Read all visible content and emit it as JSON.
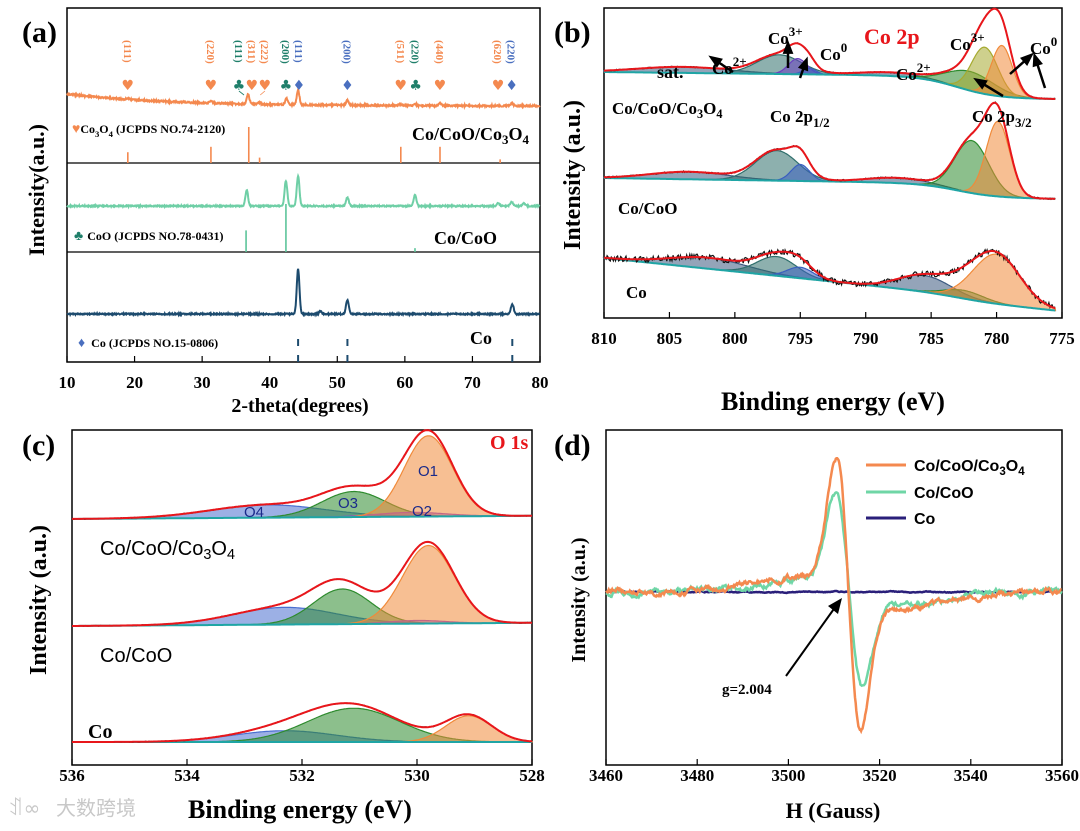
{
  "watermark": "大数跨境",
  "chart_data": [
    {
      "panel": "(a)",
      "type": "line",
      "xlabel": "2-theta(degrees)",
      "ylabel": "Intensity(a.u.)",
      "xlim": [
        10,
        80
      ],
      "xticks": [
        10,
        20,
        30,
        40,
        50,
        60,
        70,
        80
      ],
      "series": [
        {
          "name": "Co/CoO/Co3O4",
          "color": "#f4894f",
          "peaks": [
            [
              19.0,
              0.02
            ],
            [
              31.3,
              0.04
            ],
            [
              36.8,
              0.18
            ],
            [
              38.5,
              0.03
            ],
            [
              42.5,
              0.12
            ],
            [
              44.2,
              0.28
            ],
            [
              51.5,
              0.09
            ],
            [
              59.3,
              0.03
            ],
            [
              61.5,
              0.03
            ],
            [
              65.2,
              0.05
            ],
            [
              75.8,
              0.05
            ]
          ]
        },
        {
          "name": "Co/CoO",
          "color": "#6fcfa6",
          "peaks": [
            [
              36.6,
              0.38
            ],
            [
              42.4,
              0.6
            ],
            [
              44.2,
              0.72
            ],
            [
              51.5,
              0.2
            ],
            [
              61.5,
              0.26
            ],
            [
              73.8,
              0.06
            ],
            [
              75.8,
              0.1
            ],
            [
              77.6,
              0.07
            ]
          ]
        },
        {
          "name": "Co",
          "color": "#1d4b6e",
          "peaks": [
            [
              44.2,
              1.0
            ],
            [
              47.5,
              0.06
            ],
            [
              51.5,
              0.32
            ],
            [
              75.9,
              0.22
            ]
          ]
        }
      ],
      "references": [
        {
          "label": "Co3O4 (JCPDS NO.74-2120)",
          "symbol": "♥",
          "color": "#f4894f",
          "sticks": [
            [
              19.0,
              0.3
            ],
            [
              31.3,
              0.45
            ],
            [
              36.9,
              1.0
            ],
            [
              38.5,
              0.15
            ],
            [
              59.4,
              0.45
            ],
            [
              65.2,
              0.45
            ],
            [
              74.1,
              0.1
            ]
          ]
        },
        {
          "label": "CoO (JCPDS NO.78-0431)",
          "symbol": "♣",
          "color": "#5cc49a",
          "sticks": [
            [
              36.5,
              0.45
            ],
            [
              42.4,
              1.0
            ],
            [
              61.5,
              0.08
            ]
          ]
        },
        {
          "label": "Co (JCPDS NO.15-0806)",
          "symbol": "♦",
          "color": "#1d4b6e",
          "symbol_color": "#4a6fbf",
          "sticks": [
            [
              44.2,
              1.0
            ],
            [
              51.5,
              1.0
            ],
            [
              75.9,
              1.0
            ]
          ]
        }
      ],
      "peak_labels": [
        {
          "hkl": "(111)",
          "x": 19.0,
          "symbol": "♥",
          "color": "#f4894f"
        },
        {
          "hkl": "(220)",
          "x": 31.3,
          "symbol": "♥",
          "color": "#f4894f"
        },
        {
          "hkl": "(111)",
          "x": 36.2,
          "symbol": "♣",
          "color": "#1f7f6a"
        },
        {
          "hkl": "(311)",
          "x": 37.3,
          "symbol": "♥",
          "color": "#f4894f"
        },
        {
          "hkl": "(222)",
          "x": 38.6,
          "symbol": "♥",
          "color": "#f4894f"
        },
        {
          "hkl": "(200)",
          "x": 42.5,
          "symbol": "♣",
          "color": "#1f7f6a"
        },
        {
          "hkl": "(111)",
          "x": 44.2,
          "symbol": "♦",
          "color": "#4a6fbf"
        },
        {
          "hkl": "(200)",
          "x": 51.5,
          "symbol": "♦",
          "color": "#4a6fbf"
        },
        {
          "hkl": "(511)",
          "x": 59.4,
          "symbol": "♥",
          "color": "#f4894f"
        },
        {
          "hkl": "(220)",
          "x": 61.6,
          "symbol": "♣",
          "color": "#1f7f6a"
        },
        {
          "hkl": "(440)",
          "x": 65.2,
          "symbol": "♥",
          "color": "#f4894f"
        },
        {
          "hkl": "(620)",
          "x": 73.8,
          "symbol": "♥",
          "color": "#f4894f"
        },
        {
          "hkl": "(220)",
          "x": 75.8,
          "symbol": "♦",
          "color": "#4a6fbf"
        }
      ]
    },
    {
      "panel": "(b)",
      "type": "line",
      "title": "Co 2p",
      "xlabel": "Binding energy (eV)",
      "ylabel": "Intensity (a.u.)",
      "xlim": [
        810,
        775
      ],
      "xticks": [
        810,
        805,
        800,
        795,
        790,
        785,
        780,
        775
      ],
      "series": [
        {
          "name": "Co/CoO/Co3O4",
          "components": [
            {
              "label": "sat.",
              "center": 804.0,
              "height": 0.1,
              "sigma": 3.5,
              "color": "#3d5a80"
            },
            {
              "label": "Co2+",
              "center": 796.6,
              "height": 0.32,
              "sigma": 1.7,
              "color": "#2f6f6c"
            },
            {
              "label": "Co3+",
              "center": 795.2,
              "height": 0.26,
              "sigma": 0.7,
              "color": "#6a3fc0"
            },
            {
              "label": "Co0",
              "center": 794.3,
              "height": 0.1,
              "sigma": 0.5,
              "color": "#3a5fbf"
            },
            {
              "label": "sat.",
              "center": 788.2,
              "height": 0.06,
              "sigma": 2.5,
              "color": "#3d5a80"
            },
            {
              "label": "Co2+",
              "center": 782.0,
              "height": 0.32,
              "sigma": 1.8,
              "color": "#2e8b2e"
            },
            {
              "label": "Co3+",
              "center": 780.9,
              "height": 0.78,
              "sigma": 1.0,
              "color": "#a6aa30"
            },
            {
              "label": "Co0",
              "center": 779.6,
              "height": 0.85,
              "sigma": 0.8,
              "color": "#f08a3a"
            }
          ]
        },
        {
          "name": "Co/CoO",
          "components": [
            {
              "label": "sat.",
              "center": 803.5,
              "height": 0.1,
              "sigma": 3.0,
              "color": "#3d5a80"
            },
            {
              "label": "Co2+",
              "center": 796.8,
              "height": 0.4,
              "sigma": 1.6,
              "color": "#2f6f6c"
            },
            {
              "label": "Co0",
              "center": 795.0,
              "height": 0.22,
              "sigma": 0.7,
              "color": "#3a5fbf"
            },
            {
              "label": "sat.",
              "center": 787.5,
              "height": 0.07,
              "sigma": 2.5,
              "color": "#3d5a80"
            },
            {
              "label": "Co2+",
              "center": 781.9,
              "height": 0.7,
              "sigma": 1.3,
              "color": "#2e8b2e"
            },
            {
              "label": "Co0",
              "center": 779.9,
              "height": 1.0,
              "sigma": 0.9,
              "color": "#f08a3a"
            }
          ]
        },
        {
          "name": "Co",
          "components": [
            {
              "label": "sat.",
              "center": 802.0,
              "height": 0.2,
              "sigma": 3.0,
              "color": "#3d5a80"
            },
            {
              "label": "Co2+",
              "center": 796.8,
              "height": 0.35,
              "sigma": 1.5,
              "color": "#2f6f6c"
            },
            {
              "label": "Co0",
              "center": 795.0,
              "height": 0.2,
              "sigma": 1.0,
              "color": "#3a5fbf"
            },
            {
              "label": "sat.",
              "center": 785.5,
              "height": 0.3,
              "sigma": 2.0,
              "color": "#3d5a80"
            },
            {
              "label": "Co2+",
              "center": 782.5,
              "height": 0.15,
              "sigma": 1.5,
              "color": "#2e8b2e"
            },
            {
              "label": "Co0",
              "center": 780.0,
              "height": 0.9,
              "sigma": 1.8,
              "color": "#f08a3a"
            }
          ]
        }
      ],
      "annotations": {
        "sat": "sat.",
        "co2": {
          "base": "Co",
          "sup": "2+"
        },
        "co3": {
          "base": "Co",
          "sup": "3+"
        },
        "co0": {
          "base": "Co",
          "sup": "0"
        },
        "p12": {
          "base": "Co 2p",
          "sub": "1/2"
        },
        "p32": {
          "base": "Co 2p",
          "sub": "3/2"
        }
      }
    },
    {
      "panel": "(c)",
      "type": "line",
      "title": "O 1s",
      "xlabel": "Binding energy (eV)",
      "ylabel": "Intensity (a.u.)",
      "xlim": [
        536,
        528
      ],
      "xticks": [
        536,
        534,
        532,
        530,
        528
      ],
      "series": [
        {
          "name": "Co/CoO/Co3O4",
          "components": [
            {
              "label": "O4",
              "center": 532.6,
              "height": 0.15,
              "sigma": 1.0,
              "color": "#4a6fd0"
            },
            {
              "label": "O3",
              "center": 531.1,
              "height": 0.3,
              "sigma": 0.55,
              "color": "#2e8b2e"
            },
            {
              "label": "O2",
              "center": 530.1,
              "height": 0.05,
              "sigma": 0.6,
              "color": "#8a3fe0"
            },
            {
              "label": "O1",
              "center": 529.8,
              "height": 0.95,
              "sigma": 0.42,
              "color": "#f08a3a"
            }
          ]
        },
        {
          "name": "Co/CoO",
          "components": [
            {
              "label": "O4",
              "center": 532.3,
              "height": 0.22,
              "sigma": 0.9,
              "color": "#4a6fd0"
            },
            {
              "label": "O3",
              "center": 531.3,
              "height": 0.45,
              "sigma": 0.5,
              "color": "#2e8b2e"
            },
            {
              "label": "O2",
              "center": 530.0,
              "height": 0.04,
              "sigma": 0.5,
              "color": "#8a3fe0"
            },
            {
              "label": "O1",
              "center": 529.8,
              "height": 1.0,
              "sigma": 0.45,
              "color": "#f08a3a"
            }
          ]
        },
        {
          "name": "Co",
          "components": [
            {
              "label": "O4",
              "center": 532.3,
              "height": 0.15,
              "sigma": 0.9,
              "color": "#4a6fd0"
            },
            {
              "label": "O3",
              "center": 531.1,
              "height": 0.45,
              "sigma": 0.8,
              "color": "#2e8b2e"
            },
            {
              "label": "O1",
              "center": 529.1,
              "height": 0.35,
              "sigma": 0.4,
              "color": "#f08a3a"
            }
          ]
        }
      ]
    },
    {
      "panel": "(d)",
      "type": "line",
      "xlabel": "H (Gauss)",
      "ylabel": "Intensity (a.u.)",
      "xlim": [
        3460,
        3560
      ],
      "xticks": [
        3460,
        3480,
        3500,
        3520,
        3540,
        3560
      ],
      "annotation": "g=2.004",
      "legend_position": "top-right",
      "series": [
        {
          "name": "Co/CoO/Co3O4",
          "color": "#f4894f",
          "center": 3513.2,
          "width": 2.7,
          "amplitude": 1.0
        },
        {
          "name": "Co/CoO",
          "color": "#6fd6a6",
          "center": 3513.3,
          "width": 2.9,
          "amplitude": 0.72
        },
        {
          "name": "Co",
          "color": "#2a1f7a",
          "center": 3513.0,
          "width": 3.0,
          "amplitude": 0.0
        }
      ]
    }
  ]
}
